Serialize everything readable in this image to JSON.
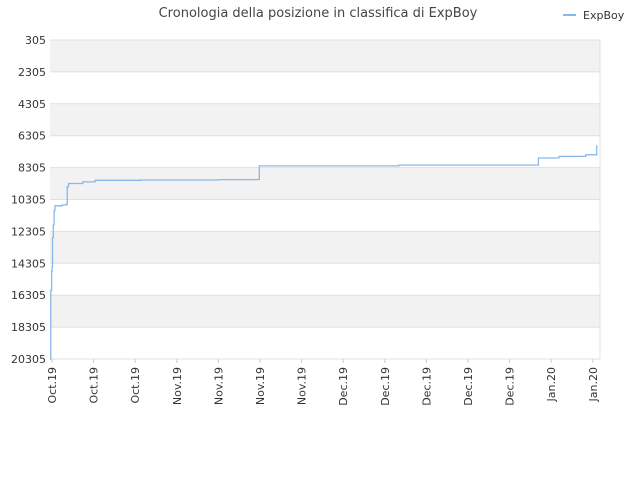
{
  "chart_data": {
    "type": "line",
    "title": "Cronologia della posizione in classifica di ExpBoy",
    "legend": {
      "position": "top-right",
      "label": "ExpBoy"
    },
    "y_inverted": true,
    "ylim": [
      305,
      20305
    ],
    "y_ticks": [
      "305",
      "2305",
      "4305",
      "6305",
      "8305",
      "10305",
      "12305",
      "14305",
      "16305",
      "18305",
      "20305"
    ],
    "x_tick_labels": [
      "Oct.19",
      "Oct.19",
      "Oct.19",
      "Nov.19",
      "Nov.19",
      "Nov.19",
      "Nov.19",
      "Dec.19",
      "Dec.19",
      "Dec.19",
      "Dec.19",
      "Dec.19",
      "Jan.20",
      "Jan.20",
      "Jan.20"
    ],
    "xlim": [
      0,
      13.4
    ],
    "grid": true,
    "series": [
      {
        "name": "ExpBoy",
        "color": "#8ab8e8",
        "points": [
          [
            0.0,
            20305
          ],
          [
            0.02,
            16000
          ],
          [
            0.04,
            14800
          ],
          [
            0.05,
            14500
          ],
          [
            0.06,
            12700
          ],
          [
            0.08,
            11900
          ],
          [
            0.1,
            11000
          ],
          [
            0.12,
            10700
          ],
          [
            0.3,
            10650
          ],
          [
            0.4,
            10600
          ],
          [
            0.42,
            9500
          ],
          [
            0.45,
            9300
          ],
          [
            0.8,
            9200
          ],
          [
            1.1,
            9100
          ],
          [
            2.2,
            9080
          ],
          [
            4.1,
            9060
          ],
          [
            5.05,
            9050
          ],
          [
            5.1,
            8200
          ],
          [
            8.5,
            8150
          ],
          [
            11.85,
            8150
          ],
          [
            11.9,
            7700
          ],
          [
            12.3,
            7700
          ],
          [
            12.4,
            7600
          ],
          [
            13.0,
            7600
          ],
          [
            13.05,
            7500
          ],
          [
            13.3,
            7500
          ],
          [
            13.32,
            6900
          ]
        ]
      }
    ]
  }
}
